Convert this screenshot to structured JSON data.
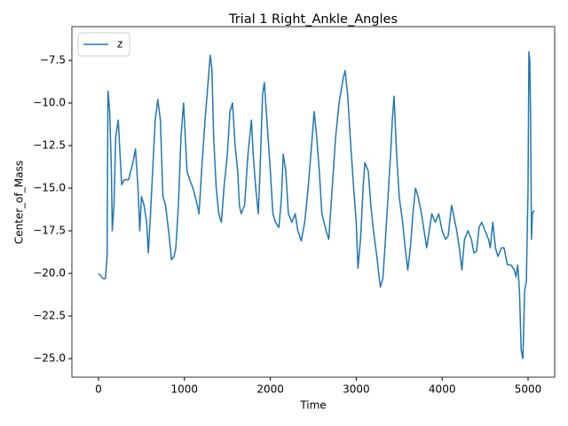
{
  "chart_data": {
    "type": "line",
    "title": "Trial 1 Right_Ankle_Angles",
    "x_label": "Time",
    "y_label": "Center_of_Mass",
    "xlim": [
      -310,
      5310
    ],
    "ylim": [
      -26.09,
      -5.52
    ],
    "xticks": [
      0,
      1000,
      2000,
      3000,
      4000,
      5000
    ],
    "yticks": [
      {
        "value": -25,
        "label": "−25.0"
      },
      {
        "value": -22.5,
        "label": "−22.5"
      },
      {
        "value": -20,
        "label": "−20.0"
      },
      {
        "value": -17.5,
        "label": "−17.5"
      },
      {
        "value": -15,
        "label": "−15.0"
      },
      {
        "value": -12.5,
        "label": "−12.5"
      },
      {
        "value": -10,
        "label": "−10.0"
      },
      {
        "value": -7.5,
        "label": "−7.5"
      }
    ],
    "grid": false,
    "legend": "upper left",
    "x": [
      0,
      50,
      80,
      100,
      110,
      130,
      150,
      160,
      180,
      200,
      230,
      250,
      270,
      300,
      350,
      400,
      430,
      460,
      480,
      500,
      530,
      560,
      580,
      600,
      630,
      660,
      690,
      720,
      750,
      780,
      820,
      850,
      880,
      900,
      930,
      960,
      990,
      1010,
      1030,
      1060,
      1100,
      1150,
      1170,
      1200,
      1240,
      1280,
      1300,
      1320,
      1340,
      1370,
      1400,
      1430,
      1460,
      1500,
      1530,
      1560,
      1590,
      1620,
      1640,
      1660,
      1700,
      1740,
      1780,
      1800,
      1830,
      1860,
      1880,
      1910,
      1930,
      1960,
      2000,
      2030,
      2060,
      2100,
      2130,
      2150,
      2180,
      2210,
      2250,
      2290,
      2320,
      2360,
      2400,
      2440,
      2480,
      2510,
      2540,
      2570,
      2600,
      2650,
      2680,
      2720,
      2760,
      2800,
      2850,
      2870,
      2900,
      2930,
      2970,
      3000,
      3020,
      3050,
      3080,
      3100,
      3140,
      3170,
      3200,
      3240,
      3280,
      3310,
      3340,
      3370,
      3400,
      3420,
      3440,
      3470,
      3500,
      3540,
      3570,
      3600,
      3630,
      3660,
      3690,
      3720,
      3760,
      3790,
      3820,
      3850,
      3880,
      3920,
      3960,
      4000,
      4040,
      4070,
      4110,
      4130,
      4170,
      4200,
      4230,
      4260,
      4300,
      4340,
      4370,
      4400,
      4430,
      4460,
      4500,
      4540,
      4560,
      4590,
      4620,
      4650,
      4690,
      4720,
      4760,
      4800,
      4840,
      4860,
      4880,
      4900,
      4920,
      4940,
      4960,
      4980,
      5000,
      5010,
      5020,
      5030,
      5040,
      5050,
      5070
    ],
    "series": [
      {
        "name": "z",
        "color": "#1f77b4",
        "values": [
          -20.0,
          -20.3,
          -20.3,
          -19,
          -9.3,
          -10.5,
          -14,
          -17.5,
          -16,
          -12,
          -11,
          -13,
          -14.8,
          -14.5,
          -14.5,
          -13.5,
          -12.7,
          -15,
          -17.5,
          -15.5,
          -16,
          -17,
          -18.8,
          -17,
          -14,
          -11,
          -9.8,
          -11,
          -15.5,
          -16,
          -17.7,
          -19.2,
          -19,
          -18.5,
          -16,
          -12,
          -10,
          -12,
          -14,
          -14.5,
          -15,
          -16,
          -16.5,
          -14,
          -11,
          -8.5,
          -7.2,
          -8,
          -12,
          -15,
          -16.5,
          -17,
          -15,
          -13,
          -10.5,
          -10,
          -12.5,
          -14,
          -16,
          -16.5,
          -16,
          -13,
          -11,
          -13,
          -15,
          -16.5,
          -14,
          -9.5,
          -8.8,
          -11,
          -14,
          -16.5,
          -17,
          -17.3,
          -15.5,
          -13,
          -14,
          -16.5,
          -17,
          -16.5,
          -17.5,
          -18.1,
          -17,
          -15,
          -12.5,
          -10.5,
          -12,
          -14,
          -16.5,
          -17.5,
          -18,
          -15,
          -12,
          -10,
          -8.5,
          -8.1,
          -9.5,
          -12,
          -15,
          -17,
          -19.7,
          -18,
          -15,
          -13.5,
          -14,
          -16,
          -17.5,
          -19,
          -20.8,
          -20.3,
          -18,
          -15.5,
          -13,
          -11,
          -9.6,
          -13,
          -15.5,
          -17,
          -18.5,
          -19.8,
          -18.5,
          -16.5,
          -15,
          -15.5,
          -16.5,
          -17.5,
          -18.5,
          -17.5,
          -16.5,
          -17,
          -16.5,
          -17.5,
          -18,
          -17.8,
          -16,
          -16.5,
          -17.5,
          -18.5,
          -19.8,
          -18,
          -17.5,
          -18,
          -18.8,
          -18.7,
          -17.3,
          -17,
          -17.5,
          -18,
          -18.5,
          -17,
          -18.5,
          -19,
          -18.5,
          -18.5,
          -19.5,
          -19.5,
          -19.8,
          -20.2,
          -19.5,
          -21,
          -24.5,
          -25,
          -21,
          -20.5,
          -15,
          -7,
          -7.5,
          -11,
          -18,
          -16.5,
          -16.3
        ]
      }
    ]
  }
}
